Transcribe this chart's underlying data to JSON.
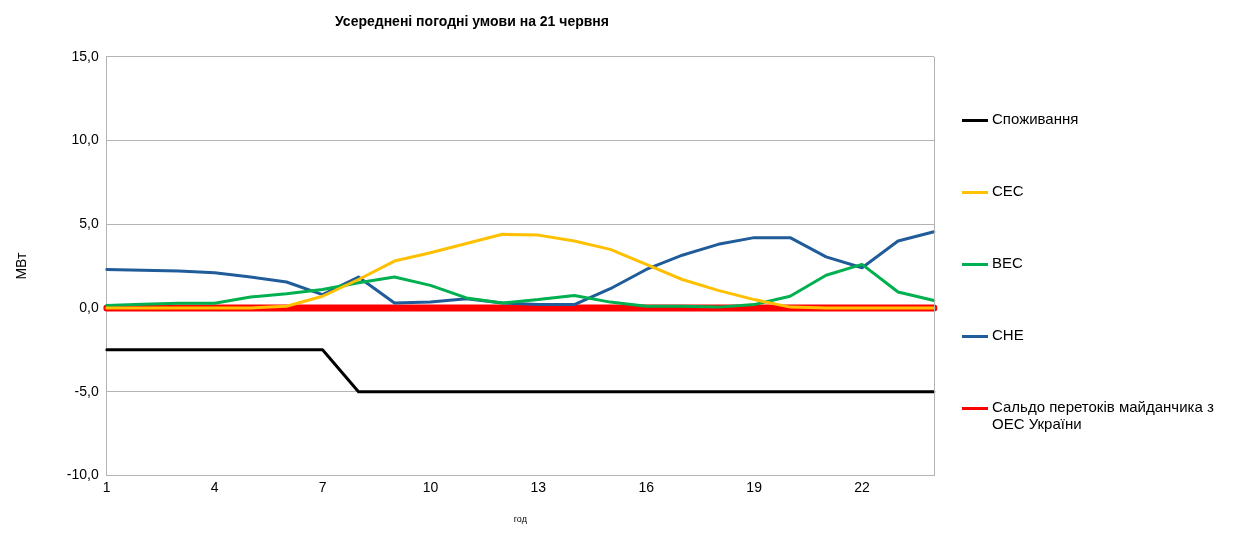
{
  "chart_data": {
    "type": "line",
    "title": "Усереднені погодні умови на 21 червня",
    "xlabel": "год",
    "ylabel": "МВт",
    "categories": [
      "1",
      null,
      null,
      "4",
      null,
      null,
      "7",
      null,
      null,
      "10",
      null,
      null,
      "13",
      null,
      null,
      "16",
      null,
      null,
      "19",
      null,
      null,
      "22",
      null,
      null
    ],
    "series": [
      {
        "name": "Споживання",
        "color": "#000000",
        "values": [
          -2.5,
          -2.5,
          -2.5,
          -2.5,
          -2.5,
          -2.5,
          -2.5,
          -5,
          -5,
          -5,
          -5,
          -5,
          -5,
          -5,
          -5,
          -5,
          -5,
          -5,
          -5,
          -5,
          -5,
          -5,
          -5,
          -5
        ]
      },
      {
        "name": "СЕС",
        "color": "#ffc000",
        "values": [
          0,
          0,
          0,
          0,
          0,
          0.1,
          0.7,
          1.7,
          2.8,
          3.3,
          3.85,
          4.4,
          4.35,
          4.0,
          3.5,
          2.6,
          1.7,
          1.05,
          0.5,
          0.05,
          0,
          0,
          0,
          0
        ]
      },
      {
        "name": "ВЕС",
        "color": "#00b050",
        "values": [
          0.15,
          0.22,
          0.28,
          0.28,
          0.65,
          0.85,
          1.1,
          1.5,
          1.85,
          1.35,
          0.6,
          0.3,
          0.5,
          0.75,
          0.35,
          0.1,
          0.1,
          0.05,
          0.2,
          0.7,
          1.95,
          2.6,
          0.95,
          0.45
        ]
      },
      {
        "name": "СНЕ",
        "color": "#1f5c99",
        "values": [
          2.3,
          2.25,
          2.2,
          2.1,
          1.85,
          1.55,
          0.8,
          1.85,
          0.3,
          0.35,
          0.55,
          0.3,
          0.2,
          0.2,
          1.15,
          2.3,
          3.15,
          3.8,
          4.2,
          4.2,
          3.05,
          2.4,
          4.0,
          4.55
        ]
      },
      {
        "name": "Сальдо перетоків майданчика з ОЕС України",
        "color": "#ff0000",
        "values": [
          0,
          0,
          0,
          0,
          0,
          0,
          0,
          0,
          0,
          0,
          0,
          0,
          0,
          0,
          0,
          0,
          0,
          0,
          0,
          0,
          0,
          0,
          0,
          0
        ]
      }
    ],
    "ylim": [
      -10,
      15
    ],
    "yticks": [
      {
        "value": -10,
        "label": "-10,0"
      },
      {
        "value": -5,
        "label": "-5,0"
      },
      {
        "value": 0,
        "label": "0,0"
      },
      {
        "value": 5,
        "label": "5,0"
      },
      {
        "value": 10,
        "label": "10,0"
      },
      {
        "value": 15,
        "label": "15,0"
      }
    ],
    "grid": "y",
    "legend": "right",
    "marker": "none",
    "line_style": "solid"
  }
}
